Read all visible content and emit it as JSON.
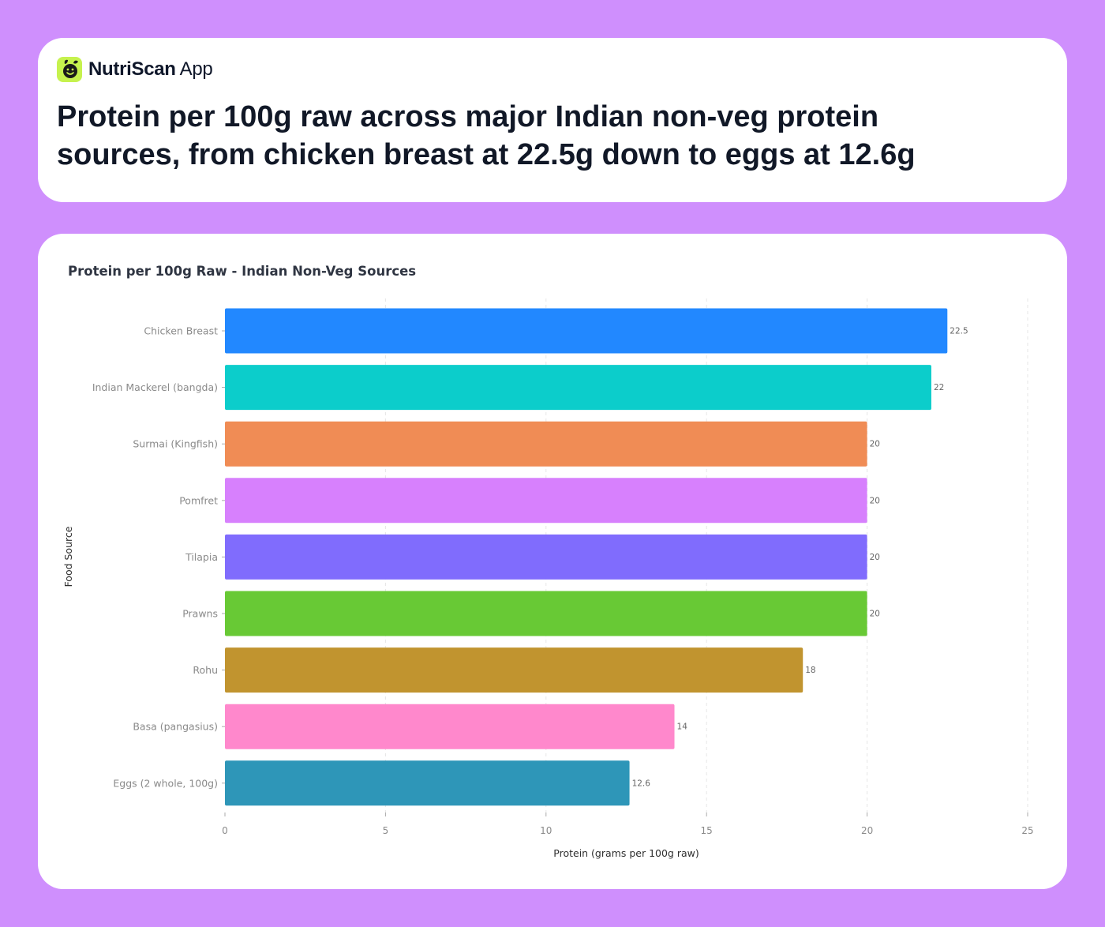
{
  "brand": {
    "name": "NutriScan",
    "suffix": "App",
    "logo_icon": "smiling-leaf-logo-icon",
    "logo_color": "#c6f24e"
  },
  "headline": "Protein per 100g raw across major Indian non-veg protein sources, from chicken breast at 22.5g down to eggs at 12.6g",
  "chart_data": {
    "type": "bar",
    "orientation": "horizontal",
    "title": "Protein per 100g Raw - Indian Non-Veg Sources",
    "xlabel": "Protein (grams per 100g raw)",
    "ylabel": "Food Source",
    "categories": [
      "Chicken Breast",
      "Indian Mackerel (bangda)",
      "Surmai (Kingfish)",
      "Pomfret",
      "Tilapia",
      "Prawns",
      "Rohu",
      "Basa (pangasius)",
      "Eggs (2 whole, 100g)"
    ],
    "values": [
      22.5,
      22,
      20,
      20,
      20,
      20,
      18,
      14,
      12.6
    ],
    "value_labels": [
      "22.5",
      "22",
      "20",
      "20",
      "20",
      "20",
      "18",
      "14",
      "12.6"
    ],
    "colors": [
      "#2288ff",
      "#0ccdcb",
      "#f08c55",
      "#d780fd",
      "#806cfd",
      "#68c935",
      "#c1942f",
      "#ff88cc",
      "#2e96b8"
    ],
    "xlim": [
      0,
      25
    ],
    "xticks": [
      "0",
      "5",
      "10",
      "15",
      "20",
      "25"
    ],
    "grid": "vertical dashed"
  }
}
